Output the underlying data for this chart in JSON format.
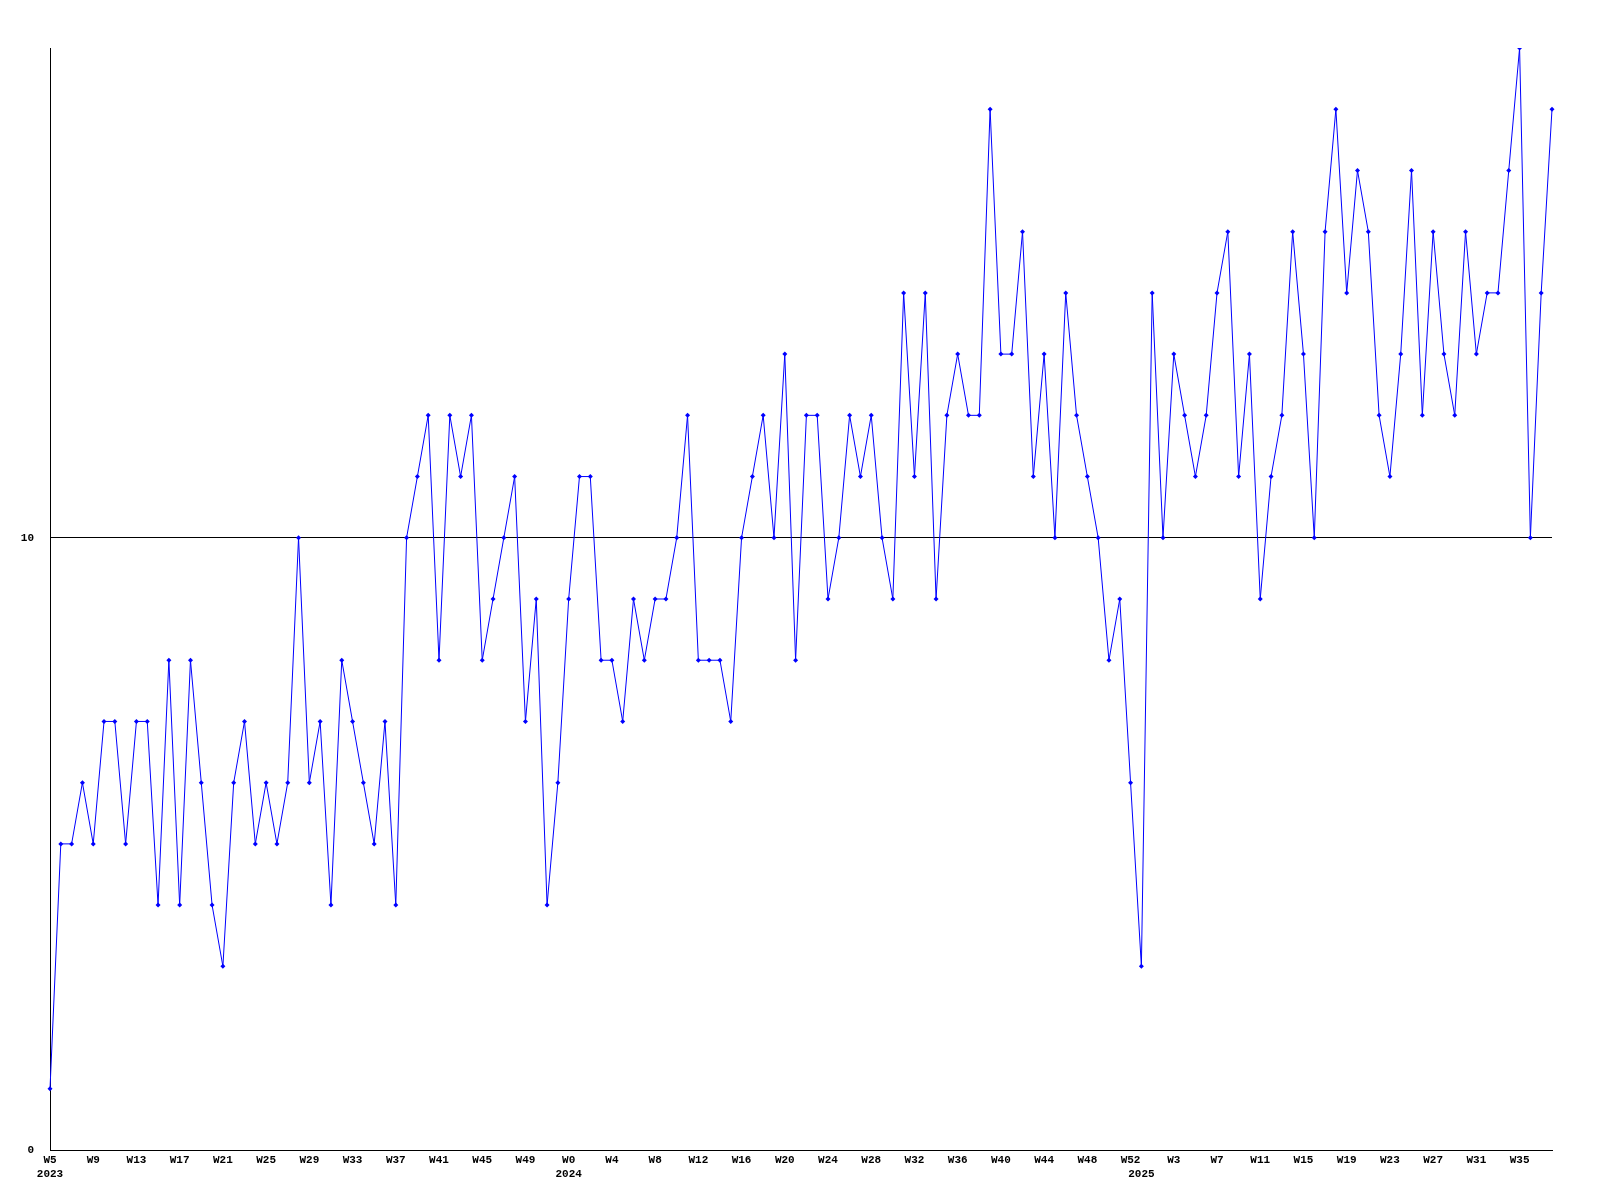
{
  "chart_data": {
    "type": "line",
    "categories": [
      "W5\n2023",
      null,
      null,
      null,
      "W9",
      null,
      null,
      null,
      "W13",
      null,
      null,
      null,
      "W17",
      null,
      null,
      null,
      "W21",
      null,
      null,
      null,
      "W25",
      null,
      null,
      null,
      "W29",
      null,
      null,
      null,
      "W33",
      null,
      null,
      null,
      "W37",
      null,
      null,
      null,
      "W41",
      null,
      null,
      null,
      "W45",
      null,
      null,
      null,
      "W49",
      null,
      null,
      null,
      "W0\n2024",
      null,
      null,
      null,
      "W4",
      null,
      null,
      null,
      "W8",
      null,
      null,
      null,
      "W12",
      null,
      null,
      null,
      "W16",
      null,
      null,
      null,
      "W20",
      null,
      null,
      null,
      "W24",
      null,
      null,
      null,
      "W28",
      null,
      null,
      null,
      "W32",
      null,
      null,
      null,
      "W36",
      null,
      null,
      null,
      "W40",
      null,
      null,
      null,
      "W44",
      null,
      null,
      null,
      "W48",
      null,
      null,
      null,
      "W52",
      "\n2025",
      null,
      null,
      "W3",
      null,
      null,
      null,
      "W7",
      null,
      null,
      null,
      "W11",
      null,
      null,
      null,
      "W15",
      null,
      null,
      null,
      "W19",
      null,
      null,
      null,
      "W23",
      null,
      null,
      null,
      "W27",
      null,
      null,
      null,
      "W31",
      null,
      null,
      null,
      "W35",
      null,
      null,
      null
    ],
    "series": [
      {
        "color": "#0000ff",
        "values": [
          1,
          5,
          5,
          6,
          5,
          7,
          7,
          5,
          7,
          7,
          4,
          8,
          4,
          8,
          6,
          4,
          3,
          6,
          7,
          5,
          6,
          5,
          6,
          10,
          6,
          7,
          4,
          8,
          7,
          6,
          5,
          7,
          4,
          10,
          11,
          12,
          8,
          12,
          11,
          12,
          8,
          9,
          10,
          11,
          7,
          9,
          4,
          6,
          9,
          11,
          11,
          8,
          8,
          7,
          9,
          8,
          9,
          9,
          10,
          12,
          8,
          8,
          8,
          7,
          10,
          11,
          12,
          10,
          13,
          8,
          12,
          12,
          9,
          10,
          12,
          11,
          12,
          10,
          9,
          14,
          11,
          14,
          9,
          12,
          13,
          12,
          12,
          17,
          13,
          13,
          15,
          11,
          13,
          10,
          14,
          12,
          11,
          10,
          8,
          9,
          6,
          3,
          14,
          10,
          13,
          12,
          11,
          12,
          14,
          15,
          11,
          13,
          9,
          11,
          12,
          15,
          13,
          10,
          15,
          17,
          14,
          16,
          15,
          12,
          11,
          13,
          16,
          12,
          15,
          13,
          12,
          15,
          13,
          14,
          14,
          16,
          18,
          10,
          14,
          17
        ]
      }
    ],
    "ylim": [
      0,
      18
    ],
    "yticks": [
      0,
      10
    ],
    "grid": "y",
    "marker": "diamond"
  }
}
